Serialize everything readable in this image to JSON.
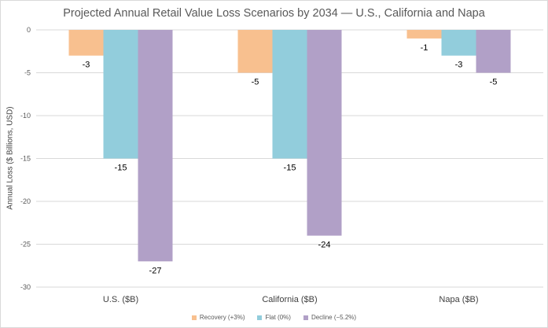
{
  "chart_data": {
    "type": "bar",
    "title": "Projected Annual Retail Value Loss Scenarios by 2034 — U.S., California and Napa",
    "xlabel": "",
    "ylabel": "Annual Loss ($ Billions, USD)",
    "ylim": [
      -30,
      0
    ],
    "yticks": [
      0,
      -5,
      -10,
      -15,
      -20,
      -25,
      -30
    ],
    "grid": true,
    "legend_position": "bottom",
    "categories": [
      "U.S. ($B)",
      "California ($B)",
      "Napa ($B)"
    ],
    "series": [
      {
        "name": "Recovery (+3%)",
        "color": "#f8c08f",
        "values": [
          -3,
          -5,
          -1
        ]
      },
      {
        "name": "Flat (0%)",
        "color": "#92cddc",
        "values": [
          -15,
          -15,
          -3
        ]
      },
      {
        "name": "Decline (−5.2%)",
        "color": "#b1a0c7",
        "values": [
          -27,
          -24,
          -5
        ]
      }
    ]
  }
}
